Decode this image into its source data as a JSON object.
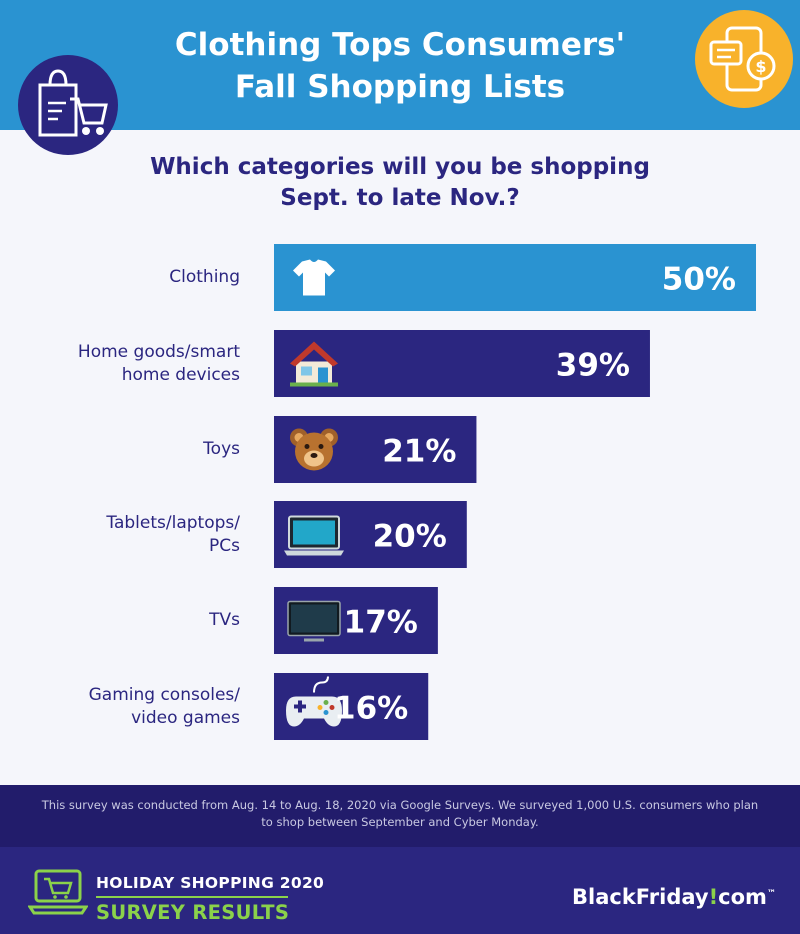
{
  "header": {
    "title_line1": "Clothing Tops Consumers'",
    "title_line2": "Fall Shopping Lists",
    "left_icon": "shopping-bag-cart-icon",
    "right_icon": "mobile-chat-dollar-icon"
  },
  "question": {
    "line1": "Which categories will you be shopping",
    "line2": "Sept. to late Nov.?"
  },
  "chart_data": {
    "type": "bar",
    "orientation": "horizontal",
    "categories": [
      "Clothing",
      "Home goods/smart home devices",
      "Toys",
      "Tablets/laptops/ PCs",
      "TVs",
      "Gaming consoles/ video games"
    ],
    "category_label_lines": [
      [
        "Clothing"
      ],
      [
        "Home goods/smart",
        "home devices"
      ],
      [
        "Toys"
      ],
      [
        "Tablets/laptops/",
        "PCs"
      ],
      [
        "TVs"
      ],
      [
        "Gaming consoles/",
        "video games"
      ]
    ],
    "values": [
      50,
      39,
      21,
      20,
      17,
      16
    ],
    "value_labels": [
      "50%",
      "39%",
      "21%",
      "20%",
      "17%",
      "16%"
    ],
    "icons": [
      "tshirt-icon",
      "house-icon",
      "teddy-bear-icon",
      "laptop-icon",
      "tv-icon",
      "gamepad-icon"
    ],
    "xlim": [
      0,
      50
    ],
    "grid": false,
    "colors": {
      "highlight": "#2a93d1",
      "default": "#2b2680"
    }
  },
  "footnote": "This survey was conducted from Aug. 14 to Aug. 18, 2020 via Google Surveys. We surveyed 1,000 U.S. consumers who plan to shop between September and Cyber Monday.",
  "footer": {
    "line1": "HOLIDAY SHOPPING 2020",
    "line2": "SURVEY RESULTS",
    "brand_part1": "BlackFriday",
    "brand_part2": "!",
    "brand_part3": "com",
    "brand_tm": "™",
    "icon": "laptop-cart-icon",
    "accent": "#8bd24a"
  }
}
